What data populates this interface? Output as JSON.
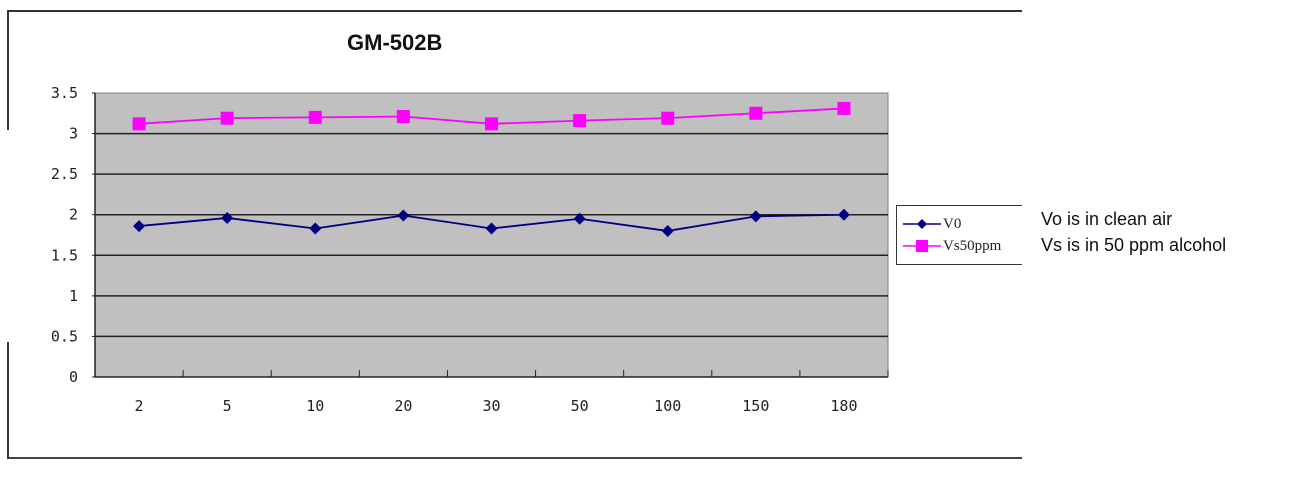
{
  "chart_data": {
    "type": "line",
    "title": "GM-502B",
    "xlabel": "",
    "ylabel": "",
    "categories": [
      "2",
      "5",
      "10",
      "20",
      "30",
      "50",
      "100",
      "150",
      "180"
    ],
    "series": [
      {
        "name": "V0",
        "color": "#000080",
        "marker": "diamond",
        "values": [
          1.86,
          1.96,
          1.83,
          1.99,
          1.83,
          1.95,
          1.8,
          1.98,
          2.0
        ]
      },
      {
        "name": "Vs50ppm",
        "color": "#ff00ff",
        "marker": "square",
        "values": [
          3.12,
          3.19,
          3.2,
          3.21,
          3.12,
          3.16,
          3.19,
          3.25,
          3.31
        ]
      }
    ],
    "ylim": [
      0,
      3.5
    ],
    "yticks": [
      "0",
      "0.5",
      "1",
      "1.5",
      "2",
      "2.5",
      "3",
      "3.5"
    ],
    "grid": true,
    "plot_background": "#c0c0c0",
    "legend_position": "right"
  },
  "legend": {
    "items": [
      {
        "label": "V0"
      },
      {
        "label": "Vs50ppm"
      }
    ]
  },
  "notes": {
    "line1": "Vo is in clean air",
    "line2": "Vs is in 50 ppm alcohol"
  }
}
